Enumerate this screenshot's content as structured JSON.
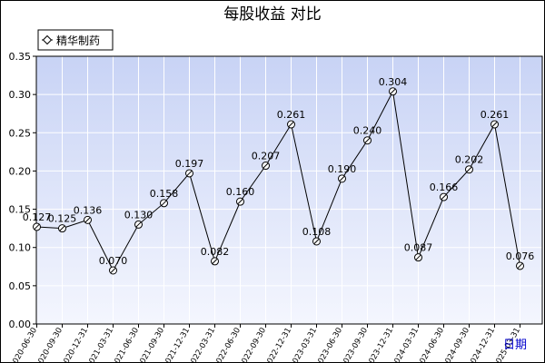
{
  "chart_data": {
    "type": "line",
    "title": "每股收益  对比",
    "xlabel": "日期",
    "ylabel": "",
    "ylim": [
      0,
      0.35
    ],
    "y_ticks": [
      "0.00",
      "0.05",
      "0.10",
      "0.15",
      "0.20",
      "0.25",
      "0.30",
      "0.35"
    ],
    "grid": true,
    "legend_placement": "top-left",
    "categories": [
      "2020-06-30",
      "2020-09-30",
      "2020-12-31",
      "2021-03-31",
      "2021-06-30",
      "2021-09-30",
      "2021-12-31",
      "2022-03-31",
      "2022-06-30",
      "2022-09-30",
      "2022-12-31",
      "2023-03-31",
      "2023-06-30",
      "2023-09-30",
      "2023-12-31",
      "2024-03-31",
      "2024-06-30",
      "2024-09-30",
      "2024-12-31",
      "2025-03-31"
    ],
    "series": [
      {
        "name": "精华制药",
        "values": [
          0.127,
          0.125,
          0.136,
          0.07,
          0.13,
          0.158,
          0.197,
          0.082,
          0.16,
          0.207,
          0.261,
          0.108,
          0.19,
          0.24,
          0.304,
          0.087,
          0.166,
          0.202,
          0.261,
          0.076
        ],
        "labels": [
          "0.127",
          "0.125",
          "0.136",
          "0.070",
          "0.130",
          "0.158",
          "0.197",
          "0.082",
          "0.160",
          "0.207",
          "0.261",
          "0.108",
          "0.190",
          "0.240",
          "0.304",
          "0.087",
          "0.166",
          "0.202",
          "0.261",
          "0.076"
        ]
      }
    ],
    "colors": {
      "plot_bg_top": "#c8d3f5",
      "plot_bg_bottom": "#f4f6fe",
      "frame": "#000000",
      "grid": "#ffffff",
      "line": "#000000",
      "axis_tick_label": "#000000",
      "xlabel": "#0000cc"
    }
  }
}
